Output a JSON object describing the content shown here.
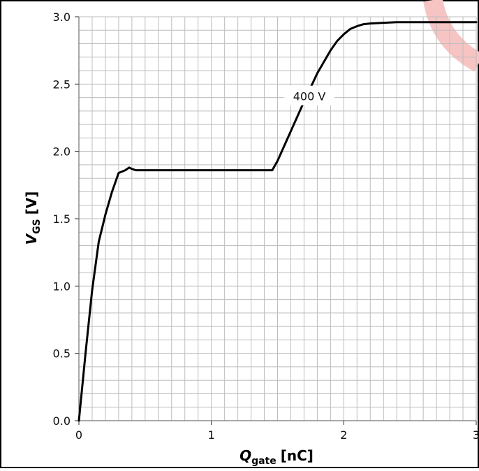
{
  "chart_data": {
    "type": "line",
    "title": "",
    "xlabel": {
      "main": "Q",
      "sub": "gate",
      "unit": "[nC]"
    },
    "ylabel": {
      "main": "V",
      "sub": "GS",
      "unit": "[V]"
    },
    "xlim": [
      0,
      3
    ],
    "ylim": [
      0,
      3
    ],
    "x_ticks": [
      "0",
      "1",
      "2",
      "3"
    ],
    "y_ticks": [
      "0.0",
      "0.5",
      "1.0",
      "1.5",
      "2.0",
      "2.5",
      "3.0"
    ],
    "grid": true,
    "series": [
      {
        "name": "400 V",
        "color": "#000000",
        "x": [
          0,
          0.05,
          0.1,
          0.15,
          0.2,
          0.25,
          0.3,
          0.35,
          0.38,
          0.4,
          0.43,
          0.6,
          1.0,
          1.4,
          1.46,
          1.5,
          1.6,
          1.7,
          1.8,
          1.9,
          1.95,
          2.0,
          2.05,
          2.1,
          2.15,
          2.2,
          2.3,
          2.4,
          2.5,
          2.6,
          2.8,
          3.0
        ],
        "y": [
          0,
          0.5,
          0.97,
          1.33,
          1.53,
          1.7,
          1.84,
          1.86,
          1.88,
          1.87,
          1.86,
          1.86,
          1.86,
          1.86,
          1.86,
          1.93,
          2.15,
          2.37,
          2.58,
          2.75,
          2.82,
          2.87,
          2.91,
          2.93,
          2.945,
          2.95,
          2.955,
          2.96,
          2.96,
          2.96,
          2.96,
          2.96
        ]
      }
    ],
    "annotation": {
      "text": "400 V",
      "x": 1.74,
      "y": 2.41
    },
    "watermark_color": "#f7c4c4"
  }
}
